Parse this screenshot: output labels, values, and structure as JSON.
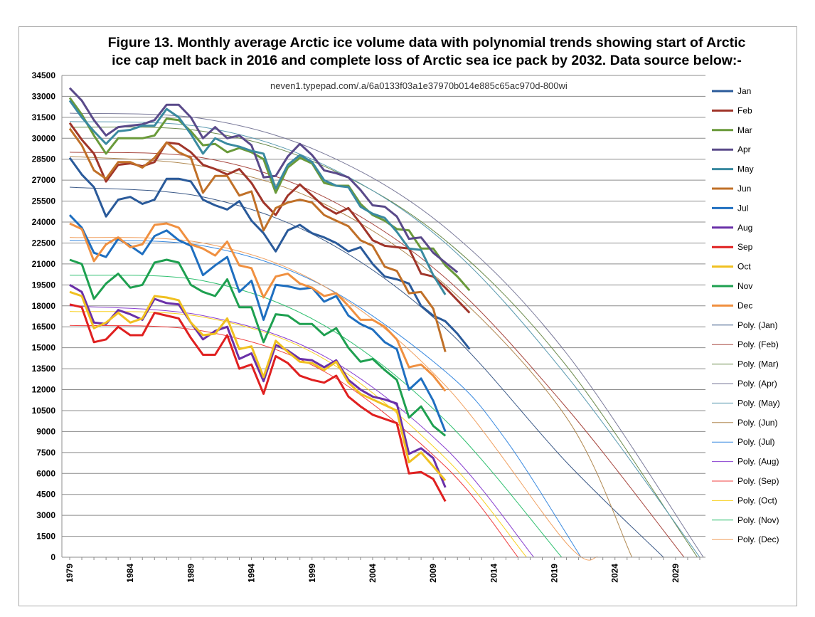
{
  "title": {
    "line1": "Figure 13. Monthly average Arctic ice volume data with polynomial trends showing start of Arctic",
    "line2": "ice cap melt back in 2016 and complete loss of Arctic sea ice pack by 2032.  Data source below:-"
  },
  "source": "neven1.typepad.com/.a/6a0133f03a1e37970b014e885c65ac970d-800wi",
  "chart_data": {
    "type": "line",
    "title": "Figure 13. Monthly average Arctic ice volume data with polynomial trends showing start of Arctic ice cap melt back in 2016 and complete loss of Arctic sea ice pack by 2032.  Data source below:-",
    "xlabel": "",
    "ylabel": "",
    "ylim": [
      0,
      34500
    ],
    "xlim": [
      1979,
      2031
    ],
    "grid": "horizontal",
    "legend_position": "right",
    "y_ticks": [
      "34500",
      "33000",
      "31500",
      "30000",
      "28500",
      "27000",
      "25500",
      "24000",
      "22500",
      "21000",
      "19500",
      "18000",
      "16500",
      "15000",
      "13500",
      "12000",
      "10500",
      "9000",
      "7500",
      "6000",
      "4500",
      "3000",
      "1500",
      "0"
    ],
    "x_ticks": [
      "1979",
      "1984",
      "1989",
      "1994",
      "1999",
      "2004",
      "2009",
      "2014",
      "2019",
      "2024",
      "2029"
    ],
    "series": [
      {
        "name": "Jan",
        "color": "#2a5a9a",
        "x_start": 1979,
        "values": [
          28600,
          27400,
          26500,
          24400,
          25600,
          25800,
          25300,
          25600,
          27100,
          27100,
          26900,
          25600,
          25200,
          24900,
          25500,
          24100,
          23200,
          21900,
          23400,
          23800,
          23200,
          22900,
          22500,
          21900,
          22200,
          21000,
          20100,
          19900,
          19600,
          18000,
          17300,
          16900,
          16000,
          14900
        ]
      },
      {
        "name": "Feb",
        "color": "#a0352a",
        "x_start": 1979,
        "values": [
          31100,
          29900,
          28900,
          26900,
          28100,
          28200,
          28000,
          28300,
          29700,
          29600,
          29000,
          28100,
          27800,
          27400,
          27800,
          26800,
          25400,
          24500,
          25900,
          26700,
          25900,
          25100,
          24600,
          25000,
          23900,
          22700,
          22300,
          22200,
          22100,
          20300,
          20100,
          19300,
          18400,
          17500
        ]
      },
      {
        "name": "Mar",
        "color": "#6a9a3a",
        "x_start": 1979,
        "values": [
          32900,
          31700,
          30200,
          28900,
          30000,
          30000,
          30000,
          30200,
          31400,
          31300,
          30500,
          29500,
          29600,
          29000,
          29300,
          29000,
          28500,
          26100,
          27900,
          28600,
          28200,
          26800,
          26600,
          26600,
          25300,
          24500,
          24100,
          23500,
          23400,
          22100,
          22100,
          20900,
          20100,
          19100
        ]
      },
      {
        "name": "Apr",
        "color": "#5a4a8a",
        "x_start": 1979,
        "values": [
          33600,
          32700,
          31300,
          30200,
          30800,
          30900,
          31000,
          31300,
          32400,
          32400,
          31500,
          30000,
          30800,
          30000,
          30200,
          29500,
          27200,
          27300,
          28700,
          29600,
          28800,
          27700,
          27500,
          27200,
          26300,
          25200,
          25100,
          24400,
          22800,
          22900,
          21800,
          21100,
          20400
        ]
      },
      {
        "name": "May",
        "color": "#3a8aa0",
        "x_start": 1979,
        "values": [
          32700,
          31500,
          30500,
          29600,
          30500,
          30600,
          30900,
          30900,
          32100,
          31500,
          30300,
          28900,
          30000,
          29600,
          29400,
          29100,
          28900,
          26400,
          28100,
          28800,
          28300,
          27000,
          26600,
          26500,
          25100,
          24600,
          24300,
          23300,
          22100,
          22000,
          20200,
          18800
        ]
      },
      {
        "name": "Jun",
        "color": "#c07028",
        "x_start": 1979,
        "values": [
          30700,
          29500,
          27700,
          27100,
          28300,
          28300,
          27900,
          28600,
          29700,
          29000,
          28600,
          26100,
          27300,
          27300,
          25900,
          26200,
          23400,
          25000,
          25400,
          25600,
          25400,
          24500,
          24100,
          23700,
          22700,
          22300,
          20800,
          20500,
          18900,
          19000,
          17800,
          14700
        ]
      },
      {
        "name": "Jul",
        "color": "#1f6fc0",
        "x_start": 1979,
        "values": [
          24500,
          23600,
          21800,
          21500,
          22800,
          22300,
          21700,
          23000,
          23400,
          22700,
          22300,
          20200,
          20900,
          21500,
          19000,
          19800,
          17000,
          19500,
          19400,
          19200,
          19300,
          18300,
          18700,
          17300,
          16700,
          16300,
          15400,
          14900,
          12000,
          12800,
          11200,
          9000
        ]
      },
      {
        "name": "Aug",
        "color": "#6a30a8",
        "x_start": 1979,
        "values": [
          19500,
          19000,
          16800,
          16700,
          17700,
          17400,
          17000,
          18500,
          18200,
          18100,
          16800,
          15600,
          16200,
          16500,
          14200,
          14600,
          12600,
          15200,
          14800,
          14200,
          14100,
          13600,
          14100,
          12700,
          12000,
          11500,
          11300,
          11000,
          7400,
          7800,
          7100,
          5000
        ]
      },
      {
        "name": "Sep",
        "color": "#e02020",
        "x_start": 1979,
        "values": [
          18100,
          17900,
          15400,
          15600,
          16500,
          15900,
          15900,
          17500,
          17300,
          17100,
          15700,
          14500,
          14500,
          15900,
          13500,
          13800,
          11700,
          14400,
          13900,
          13000,
          12700,
          12500,
          13000,
          11500,
          10800,
          10200,
          9900,
          9600,
          6000,
          6100,
          5600,
          4000
        ]
      },
      {
        "name": "Oct",
        "color": "#f0c020",
        "x_start": 1979,
        "values": [
          19000,
          18700,
          16400,
          16800,
          17500,
          16800,
          17100,
          18700,
          18600,
          18400,
          16800,
          15900,
          16000,
          17100,
          14900,
          15100,
          12900,
          15500,
          14700,
          14000,
          13900,
          13400,
          14000,
          12500,
          11700,
          11300,
          10900,
          10500,
          6800,
          7500,
          6500,
          5500
        ]
      },
      {
        "name": "Nov",
        "color": "#1ea050",
        "x_start": 1979,
        "values": [
          21300,
          21000,
          18500,
          19600,
          20300,
          19300,
          19500,
          21100,
          21300,
          21100,
          19500,
          19000,
          18700,
          19900,
          17900,
          17900,
          15400,
          17400,
          17300,
          16700,
          16700,
          15900,
          16400,
          15000,
          14000,
          14200,
          13400,
          12700,
          10000,
          10800,
          9400,
          8700
        ]
      },
      {
        "name": "Dec",
        "color": "#f09040",
        "x_start": 1979,
        "values": [
          23900,
          23500,
          21200,
          22400,
          22900,
          22200,
          22400,
          23800,
          23900,
          23600,
          22400,
          22100,
          21600,
          22600,
          20900,
          20700,
          18600,
          20100,
          20300,
          19600,
          19300,
          18700,
          18900,
          18000,
          17000,
          17000,
          16500,
          15600,
          13600,
          13800,
          13000,
          11900
        ]
      }
    ],
    "trends": [
      {
        "name": "Poly. (Jan)",
        "color": "#3c5a88",
        "points": [
          [
            1979,
            26500
          ],
          [
            1990,
            25800
          ],
          [
            2000,
            22700
          ],
          [
            2010,
            16400
          ],
          [
            2020,
            6800
          ],
          [
            2028,
            0
          ]
        ]
      },
      {
        "name": "Poly. (Feb)",
        "color": "#a84840",
        "points": [
          [
            1979,
            29000
          ],
          [
            1990,
            28600
          ],
          [
            2000,
            25800
          ],
          [
            2010,
            20000
          ],
          [
            2020,
            10700
          ],
          [
            2029.7,
            0
          ]
        ]
      },
      {
        "name": "Poly. (Mar)",
        "color": "#6a8a4a",
        "points": [
          [
            1979,
            30800
          ],
          [
            1990,
            30500
          ],
          [
            2000,
            28000
          ],
          [
            2010,
            22700
          ],
          [
            2020,
            13700
          ],
          [
            2030.8,
            0
          ]
        ]
      },
      {
        "name": "Poly. (Apr)",
        "color": "#7a7a9a",
        "points": [
          [
            1979,
            31800
          ],
          [
            1990,
            31400
          ],
          [
            2000,
            28900
          ],
          [
            2010,
            23600
          ],
          [
            2020,
            14600
          ],
          [
            2031.3,
            0
          ]
        ]
      },
      {
        "name": "Poly. (May)",
        "color": "#5a9ab0",
        "points": [
          [
            1979,
            31200
          ],
          [
            1990,
            30800
          ],
          [
            2000,
            28100
          ],
          [
            2010,
            22500
          ],
          [
            2020,
            13000
          ],
          [
            2031,
            0
          ]
        ]
      },
      {
        "name": "Poly. (Jun)",
        "color": "#b08850",
        "points": [
          [
            1979,
            28700
          ],
          [
            1990,
            28000
          ],
          [
            2000,
            25300
          ],
          [
            2010,
            19500
          ],
          [
            2020,
            10000
          ],
          [
            2025.4,
            0
          ]
        ]
      },
      {
        "name": "Poly. (Jul)",
        "color": "#3a8ae0",
        "points": [
          [
            1979,
            22700
          ],
          [
            1990,
            22300
          ],
          [
            2000,
            19400
          ],
          [
            2010,
            13300
          ],
          [
            2015,
            8400
          ],
          [
            2021.2,
            0
          ]
        ]
      },
      {
        "name": "Poly. (Aug)",
        "color": "#8a40d0",
        "points": [
          [
            1979,
            18000
          ],
          [
            1990,
            17300
          ],
          [
            2000,
            14400
          ],
          [
            2010,
            7800
          ],
          [
            2017.3,
            0
          ]
        ]
      },
      {
        "name": "Poly. (Sep)",
        "color": "#f04040",
        "points": [
          [
            1979,
            16600
          ],
          [
            1990,
            16200
          ],
          [
            2000,
            13300
          ],
          [
            2010,
            6500
          ],
          [
            2016,
            0
          ]
        ]
      },
      {
        "name": "Poly. (Oct)",
        "color": "#f8d020",
        "points": [
          [
            1979,
            17600
          ],
          [
            1990,
            17200
          ],
          [
            2000,
            14200
          ],
          [
            2010,
            7100
          ],
          [
            2016.7,
            0
          ]
        ]
      },
      {
        "name": "Poly. (Nov)",
        "color": "#30c070",
        "points": [
          [
            1979,
            20200
          ],
          [
            1990,
            19800
          ],
          [
            2000,
            16600
          ],
          [
            2010,
            9800
          ],
          [
            2019.6,
            0
          ]
        ]
      },
      {
        "name": "Poly. (Dec)",
        "color": "#f0a060",
        "points": [
          [
            1979,
            22900
          ],
          [
            1990,
            22500
          ],
          [
            2000,
            19400
          ],
          [
            2010,
            12300
          ],
          [
            2020,
            1000
          ],
          [
            2022.6,
            0
          ]
        ]
      }
    ]
  }
}
